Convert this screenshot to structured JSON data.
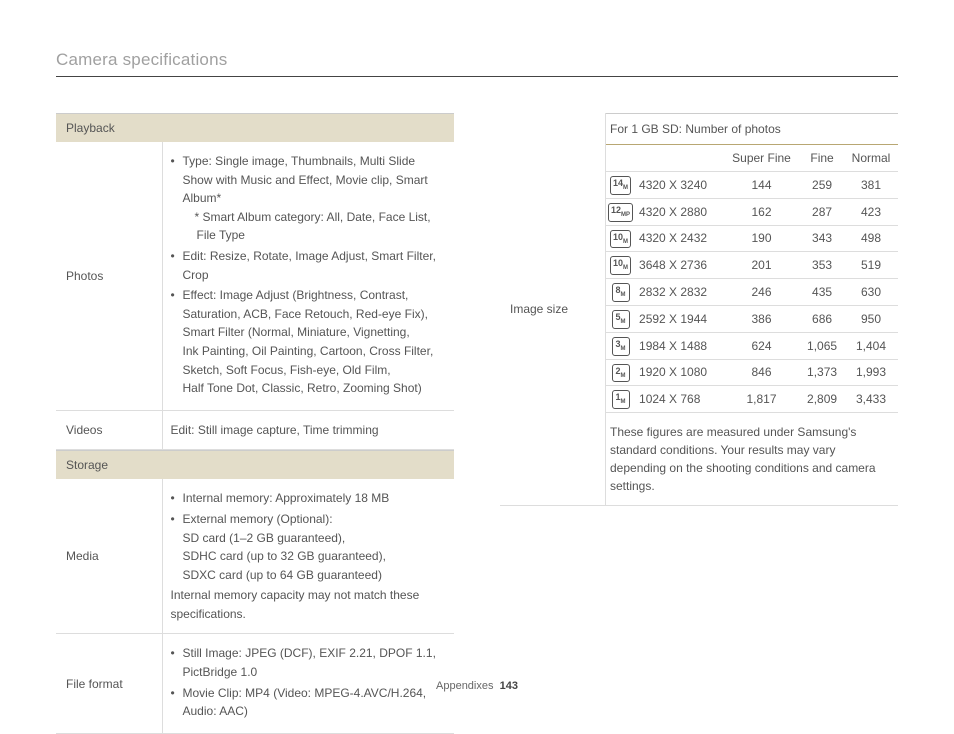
{
  "header": {
    "title": "Camera specifications"
  },
  "footer": {
    "section": "Appendixes",
    "page": "143"
  },
  "left": {
    "playback_header": "Playback",
    "photos": {
      "label": "Photos",
      "b1": "Type: Single image, Thumbnails, Multi Slide Show with Music and Effect, Movie clip, Smart Album*",
      "b1_sub1": "* Smart Album category: All, Date, Face List,",
      "b1_sub2": "File Type",
      "b2": "Edit: Resize, Rotate, Image Adjust, Smart Filter, Crop",
      "b3a": "Effect: Image Adjust (Brightness, Contrast,",
      "b3b": "Saturation, ACB, Face Retouch, Red-eye Fix),",
      "b3c": "Smart Filter (Normal, Miniature, Vignetting,",
      "b3d": "Ink Painting, Oil Painting, Cartoon, Cross Filter,",
      "b3e": "Sketch, Soft Focus, Fish-eye, Old Film,",
      "b3f": "Half Tone Dot, Classic, Retro, Zooming Shot)"
    },
    "videos": {
      "label": "Videos",
      "text": "Edit: Still image capture, Time trimming"
    },
    "storage_header": "Storage",
    "media": {
      "label": "Media",
      "b1": "Internal memory: Approximately 18 MB",
      "b2": "External memory (Optional):",
      "b2a": "SD card (1–2 GB guaranteed),",
      "b2b": "SDHC card (up to 32 GB guaranteed),",
      "b2c": "SDXC card (up to 64 GB guaranteed)",
      "note": "Internal memory capacity may not match these specifications."
    },
    "fileformat": {
      "label": "File format",
      "b1": "Still Image: JPEG (DCF), EXIF 2.21, DPOF 1.1, PictBridge 1.0",
      "b2": "Movie Clip: MP4 (Video: MPEG-4.AVC/H.264, Audio: AAC)"
    }
  },
  "right": {
    "label": "Image size",
    "table_caption": "For 1 GB SD: Number of photos",
    "cols": {
      "c1": "Super Fine",
      "c2": "Fine",
      "c3": "Normal"
    },
    "rows": [
      {
        "icon": "14",
        "sub": "M",
        "res": "4320 X 3240",
        "sf": "144",
        "f": "259",
        "n": "381"
      },
      {
        "icon": "12",
        "sub": "MP",
        "res": "4320 X 2880",
        "sf": "162",
        "f": "287",
        "n": "423"
      },
      {
        "icon": "10",
        "sub": "M",
        "res": "4320 X 2432",
        "sf": "190",
        "f": "343",
        "n": "498"
      },
      {
        "icon": "10",
        "sub": "M",
        "res": "3648 X 2736",
        "sf": "201",
        "f": "353",
        "n": "519"
      },
      {
        "icon": "8",
        "sub": "M",
        "res": "2832 X 2832",
        "sf": "246",
        "f": "435",
        "n": "630"
      },
      {
        "icon": "5",
        "sub": "M",
        "res": "2592 X 1944",
        "sf": "386",
        "f": "686",
        "n": "950"
      },
      {
        "icon": "3",
        "sub": "M",
        "res": "1984 X 1488",
        "sf": "624",
        "f": "1,065",
        "n": "1,404"
      },
      {
        "icon": "2",
        "sub": "M",
        "res": "1920 X 1080",
        "sf": "846",
        "f": "1,373",
        "n": "1,993"
      },
      {
        "icon": "1",
        "sub": "M",
        "res": "1024 X 768",
        "sf": "1,817",
        "f": "2,809",
        "n": "3,433"
      }
    ],
    "disclaimer": "These figures are measured under Samsung's standard conditions. Your results may vary depending on the shooting conditions and camera settings."
  }
}
